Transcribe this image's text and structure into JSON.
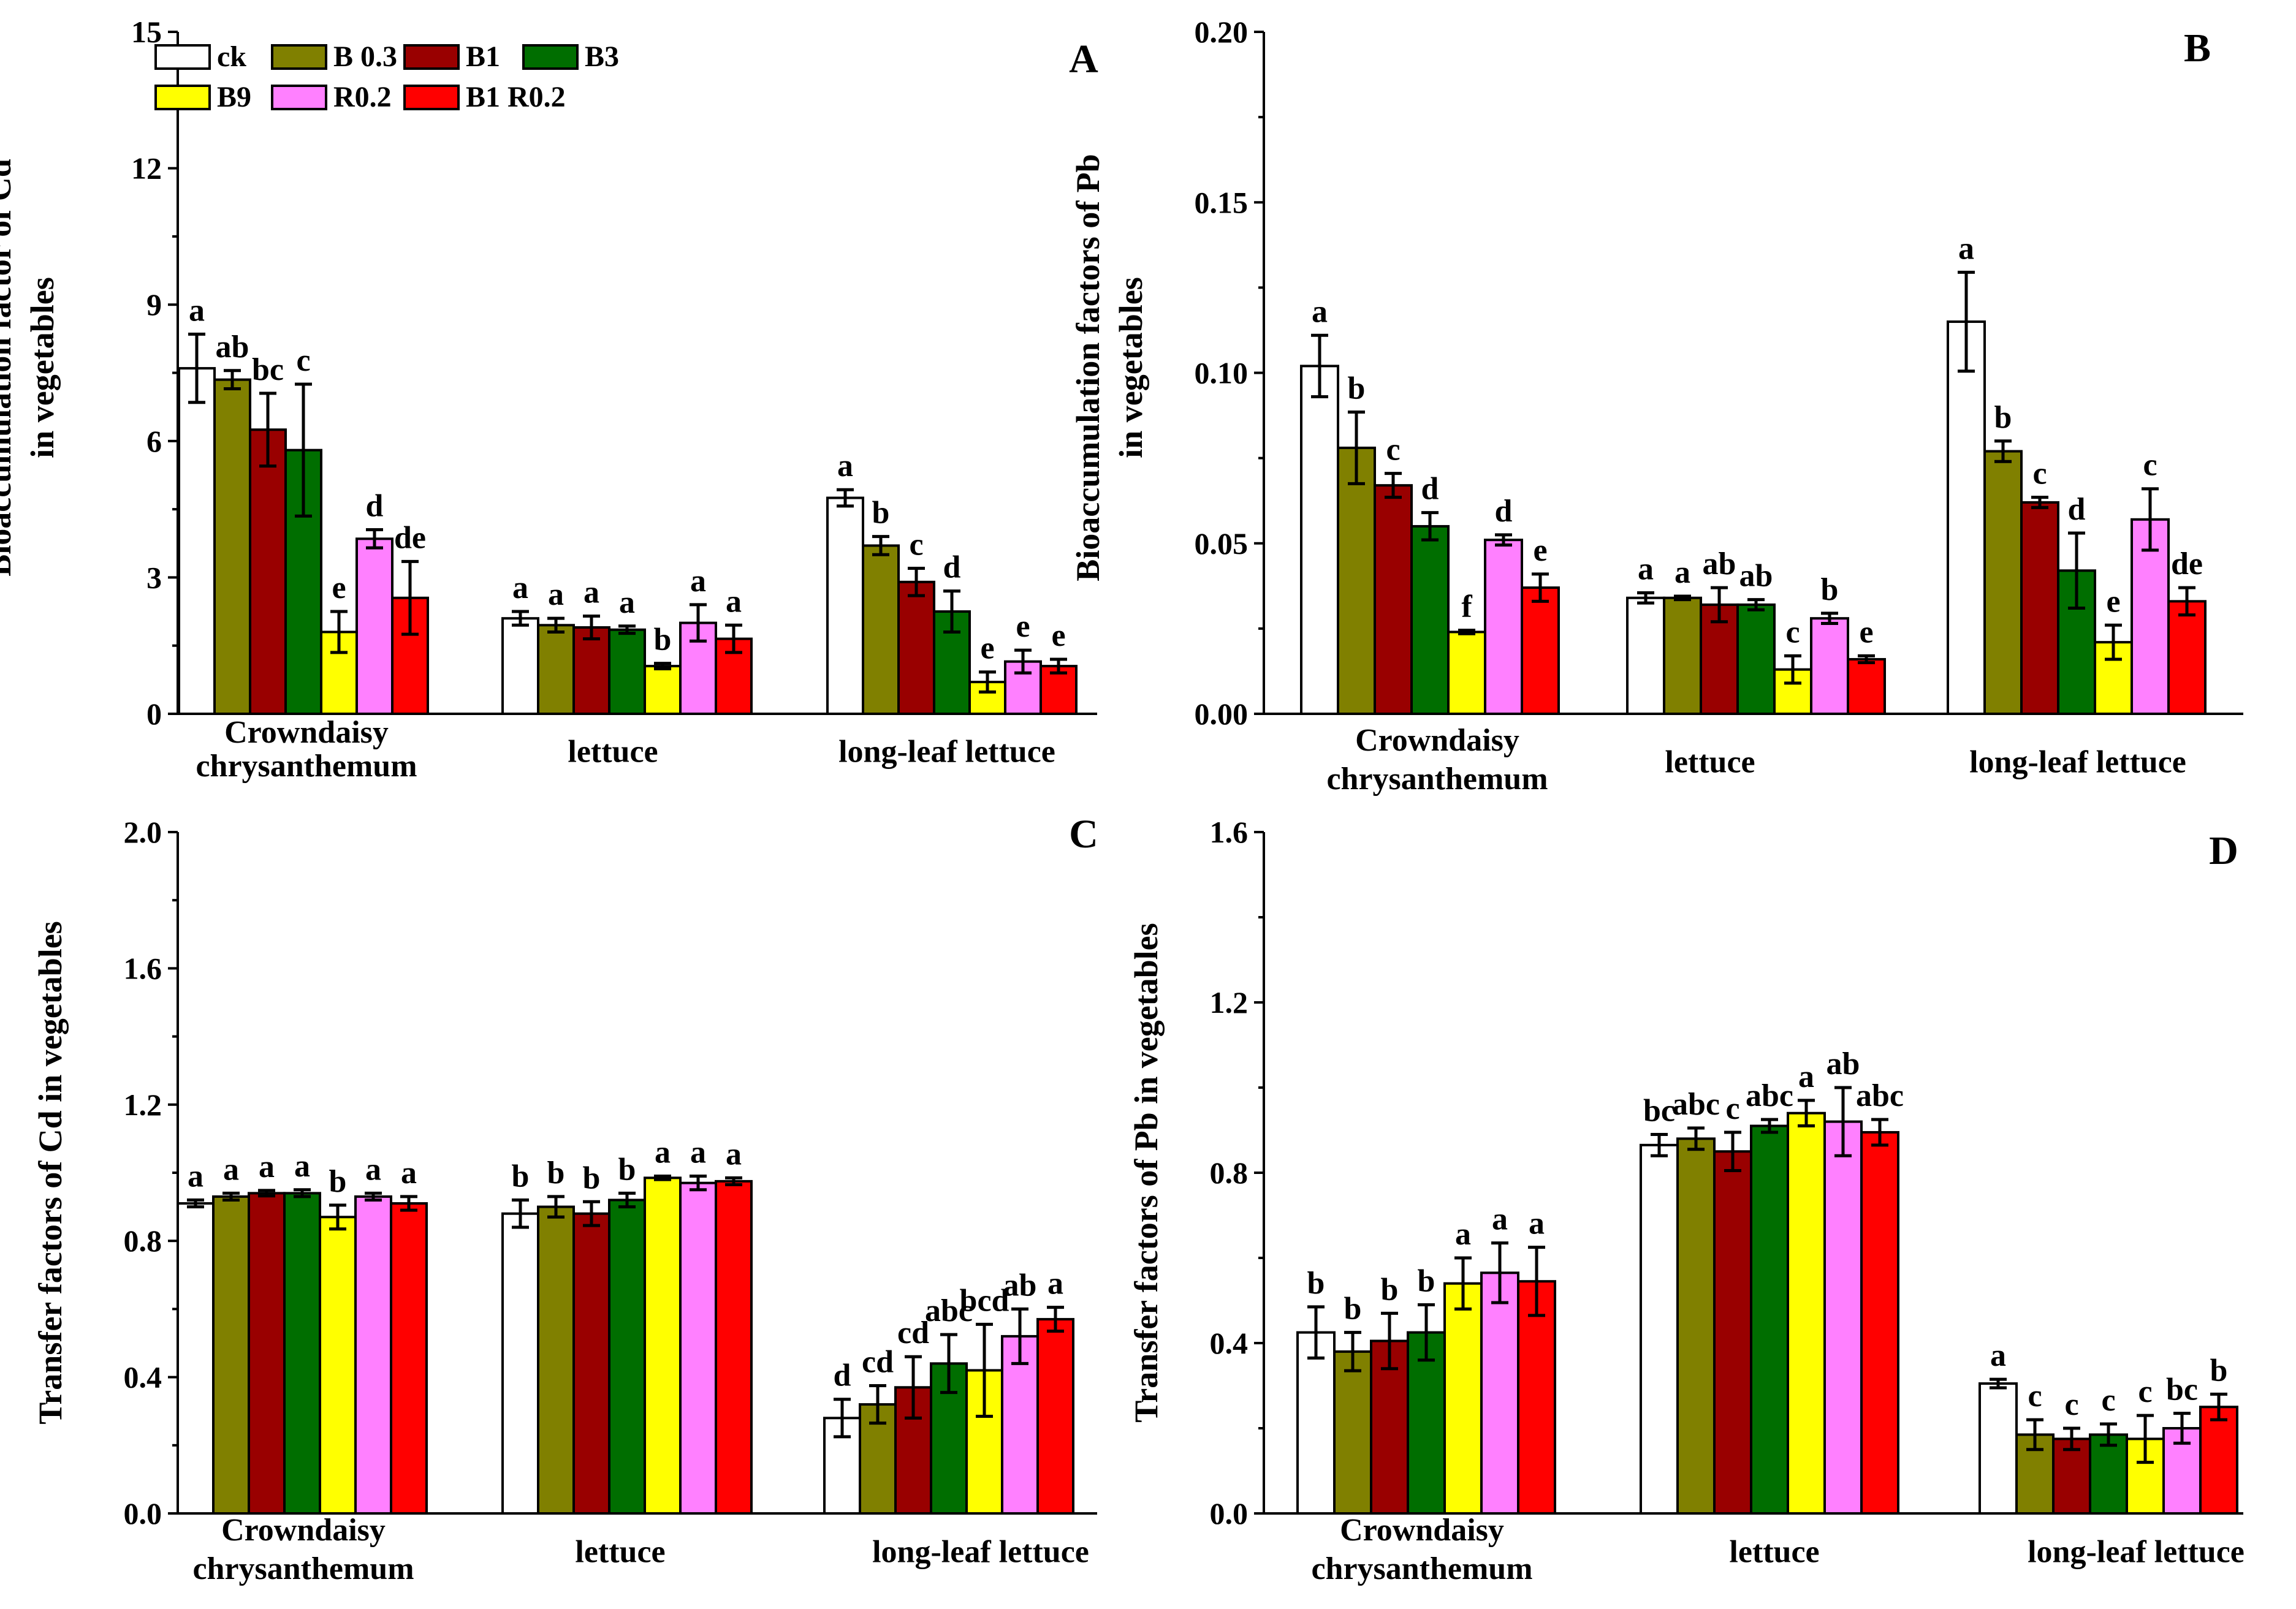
{
  "treatments": [
    {
      "name": "ck",
      "color": "#ffffff"
    },
    {
      "name": "B 0.3",
      "color": "#808000"
    },
    {
      "name": "B1",
      "color": "#990000"
    },
    {
      "name": "B3",
      "color": "#006e00"
    },
    {
      "name": "B9",
      "color": "#ffff00"
    },
    {
      "name": "R0.2",
      "color": "#ff80ff"
    },
    {
      "name": "B1 R0.2",
      "color": "#ff0000"
    }
  ],
  "chart_data": [
    {
      "type": "bar",
      "panel": "A",
      "ylabel": [
        "Bioaccumulation factor of Cd",
        "in vegetables"
      ],
      "ylim": [
        0,
        15
      ],
      "yticks": [
        "0",
        "3",
        "6",
        "9",
        "12",
        "15"
      ],
      "categories": [
        "Crowndaisy chrysanthemum",
        "lettuce",
        "long-leaf lettuce"
      ],
      "category_lines": [
        [
          "Crowndaisy",
          "chrysanthemum"
        ],
        [
          "lettuce"
        ],
        [
          "long-leaf lettuce"
        ]
      ],
      "series": [
        {
          "name": "ck",
          "values": [
            7.6,
            2.1,
            4.75
          ],
          "errors": [
            0.75,
            0.15,
            0.18
          ],
          "letters": [
            "a",
            "a",
            "a"
          ]
        },
        {
          "name": "B 0.3",
          "values": [
            7.35,
            1.95,
            3.7
          ],
          "errors": [
            0.2,
            0.15,
            0.2
          ],
          "letters": [
            "ab",
            "a",
            "b"
          ]
        },
        {
          "name": "B1",
          "values": [
            6.25,
            1.9,
            2.9
          ],
          "errors": [
            0.8,
            0.25,
            0.3
          ],
          "letters": [
            "bc",
            "a",
            "c"
          ]
        },
        {
          "name": "B3",
          "values": [
            5.8,
            1.85,
            2.25
          ],
          "errors": [
            1.45,
            0.08,
            0.45
          ],
          "letters": [
            "c",
            "a",
            "d"
          ]
        },
        {
          "name": "B9",
          "values": [
            1.8,
            1.05,
            0.7
          ],
          "errors": [
            0.45,
            0.06,
            0.22
          ],
          "letters": [
            "e",
            "b",
            "e"
          ]
        },
        {
          "name": "R0.2",
          "values": [
            3.85,
            2.0,
            1.15
          ],
          "errors": [
            0.2,
            0.4,
            0.25
          ],
          "letters": [
            "d",
            "a",
            "e"
          ]
        },
        {
          "name": "B1 R0.2",
          "values": [
            2.55,
            1.65,
            1.05
          ],
          "errors": [
            0.8,
            0.3,
            0.15
          ],
          "letters": [
            "de",
            "a",
            "e"
          ]
        }
      ]
    },
    {
      "type": "bar",
      "panel": "B",
      "ylabel": [
        "Bioaccumulation factors of Pb",
        "in vegetables"
      ],
      "ylim": [
        0,
        0.2
      ],
      "yticks": [
        "0.00",
        "0.05",
        "0.10",
        "0.15",
        "0.20"
      ],
      "categories": [
        "Crowndaisy chrysanthemum",
        "lettuce",
        "long-leaf lettuce"
      ],
      "category_lines": [
        [
          "Crowndaisy",
          "chrysanthemum"
        ],
        [
          "lettuce"
        ],
        [
          "long-leaf lettuce"
        ]
      ],
      "series": [
        {
          "name": "ck",
          "values": [
            0.102,
            0.034,
            0.115
          ],
          "errors": [
            0.009,
            0.0015,
            0.0145
          ],
          "letters": [
            "a",
            "a",
            "a"
          ]
        },
        {
          "name": "B 0.3",
          "values": [
            0.078,
            0.034,
            0.077
          ],
          "errors": [
            0.0105,
            0.0005,
            0.003
          ],
          "letters": [
            "b",
            "a",
            "b"
          ]
        },
        {
          "name": "B1",
          "values": [
            0.067,
            0.032,
            0.062
          ],
          "errors": [
            0.0035,
            0.005,
            0.0015
          ],
          "letters": [
            "c",
            "ab",
            "c"
          ]
        },
        {
          "name": "B3",
          "values": [
            0.055,
            0.032,
            0.042
          ],
          "errors": [
            0.004,
            0.0015,
            0.011
          ],
          "letters": [
            "d",
            "ab",
            "d"
          ]
        },
        {
          "name": "B9",
          "values": [
            0.024,
            0.013,
            0.021
          ],
          "errors": [
            0.0005,
            0.004,
            0.005
          ],
          "letters": [
            "f",
            "c",
            "e"
          ]
        },
        {
          "name": "R0.2",
          "values": [
            0.051,
            0.028,
            0.057
          ],
          "errors": [
            0.0015,
            0.0015,
            0.009
          ],
          "letters": [
            "d",
            "b",
            "c"
          ]
        },
        {
          "name": "B1 R0.2",
          "values": [
            0.037,
            0.016,
            0.033
          ],
          "errors": [
            0.004,
            0.001,
            0.004
          ],
          "letters": [
            "e",
            "e",
            "de"
          ]
        }
      ]
    },
    {
      "type": "bar",
      "panel": "C",
      "ylabel": [
        "Transfer factors of Cd in vegetables"
      ],
      "ylim": [
        0,
        2.0
      ],
      "yticks": [
        "0.0",
        "0.4",
        "0.8",
        "1.2",
        "1.6",
        "2.0"
      ],
      "categories": [
        "Crowndaisy chrysanthemum",
        "lettuce",
        "long-leaf lettuce"
      ],
      "category_lines": [
        [
          "Crowndaisy",
          "chrysanthemum"
        ],
        [
          "lettuce"
        ],
        [
          "long-leaf lettuce"
        ]
      ],
      "series": [
        {
          "name": "ck",
          "values": [
            0.91,
            0.88,
            0.28
          ],
          "errors": [
            0.01,
            0.04,
            0.055
          ],
          "letters": [
            "a",
            "b",
            "d"
          ]
        },
        {
          "name": "B 0.3",
          "values": [
            0.93,
            0.9,
            0.32
          ],
          "errors": [
            0.01,
            0.03,
            0.055
          ],
          "letters": [
            "a",
            "b",
            "cd"
          ]
        },
        {
          "name": "B1",
          "values": [
            0.94,
            0.88,
            0.37
          ],
          "errors": [
            0.008,
            0.035,
            0.09
          ],
          "letters": [
            "a",
            "b",
            "cd"
          ]
        },
        {
          "name": "B3",
          "values": [
            0.94,
            0.92,
            0.44
          ],
          "errors": [
            0.01,
            0.02,
            0.085
          ],
          "letters": [
            "a",
            "b",
            "abc"
          ]
        },
        {
          "name": "B9",
          "values": [
            0.87,
            0.985,
            0.42
          ],
          "errors": [
            0.035,
            0.005,
            0.135
          ],
          "letters": [
            "b",
            "a",
            "bcd"
          ]
        },
        {
          "name": "R0.2",
          "values": [
            0.93,
            0.97,
            0.52
          ],
          "errors": [
            0.01,
            0.02,
            0.08
          ],
          "letters": [
            "a",
            "a",
            "ab"
          ]
        },
        {
          "name": "B1 R0.2",
          "values": [
            0.91,
            0.975,
            0.57
          ],
          "errors": [
            0.02,
            0.01,
            0.035
          ],
          "letters": [
            "a",
            "a",
            "a"
          ]
        }
      ]
    },
    {
      "type": "bar",
      "panel": "D",
      "ylabel": [
        "Transfer factors  of Pb in vegetables"
      ],
      "ylim": [
        0,
        1.6
      ],
      "yticks": [
        "0.0",
        "0.4",
        "0.8",
        "1.2",
        "1.6"
      ],
      "categories": [
        "Crowndaisy chrysanthemum",
        "lettuce",
        "long-leaf lettuce"
      ],
      "category_lines": [
        [
          "Crowndaisy",
          "chrysanthemum"
        ],
        [
          "lettuce"
        ],
        [
          "long-leaf lettuce"
        ]
      ],
      "series": [
        {
          "name": "ck",
          "values": [
            0.425,
            0.865,
            0.305
          ],
          "errors": [
            0.06,
            0.025,
            0.01
          ],
          "letters": [
            "b",
            "bc",
            "a"
          ]
        },
        {
          "name": "B 0.3",
          "values": [
            0.38,
            0.88,
            0.185
          ],
          "errors": [
            0.045,
            0.025,
            0.035
          ],
          "letters": [
            "b",
            "abc",
            "c"
          ]
        },
        {
          "name": "B1",
          "values": [
            0.405,
            0.85,
            0.175
          ],
          "errors": [
            0.065,
            0.045,
            0.025
          ],
          "letters": [
            "b",
            "c",
            "c"
          ]
        },
        {
          "name": "B3",
          "values": [
            0.425,
            0.91,
            0.185
          ],
          "errors": [
            0.065,
            0.015,
            0.025
          ],
          "letters": [
            "b",
            "abc",
            "c"
          ]
        },
        {
          "name": "B9",
          "values": [
            0.54,
            0.94,
            0.175
          ],
          "errors": [
            0.06,
            0.03,
            0.055
          ],
          "letters": [
            "a",
            "a",
            "c"
          ]
        },
        {
          "name": "R0.2",
          "values": [
            0.565,
            0.92,
            0.2
          ],
          "errors": [
            0.07,
            0.08,
            0.035
          ],
          "letters": [
            "a",
            "ab",
            "bc"
          ]
        },
        {
          "name": "B1 R0.2",
          "values": [
            0.545,
            0.895,
            0.25
          ],
          "errors": [
            0.08,
            0.03,
            0.03
          ],
          "letters": [
            "a",
            "abc",
            "b"
          ]
        }
      ]
    }
  ]
}
